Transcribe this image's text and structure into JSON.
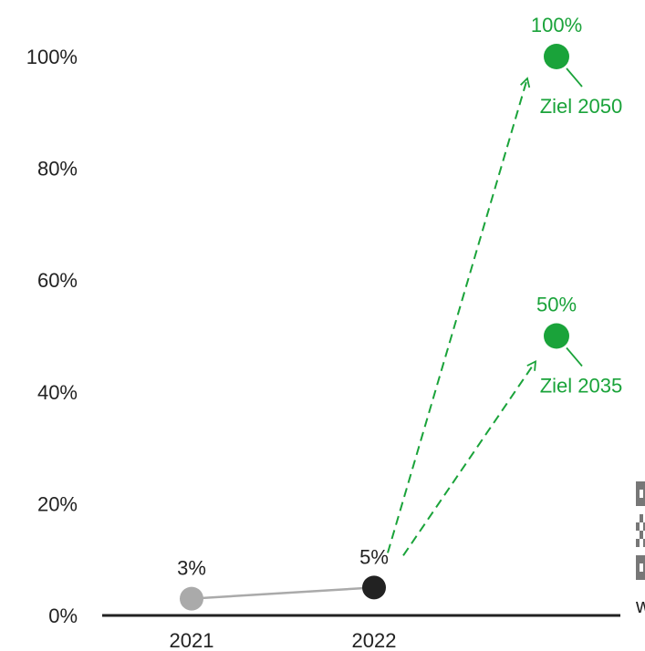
{
  "chart_data": {
    "type": "scatter",
    "title": "",
    "xlabel": "",
    "ylabel": "",
    "ylim": [
      0,
      100
    ],
    "yticks": [
      "0%",
      "20%",
      "40%",
      "60%",
      "80%",
      "100%"
    ],
    "ytick_values": [
      0,
      20,
      40,
      60,
      80,
      100
    ],
    "xticks": [
      "2021",
      "2022"
    ],
    "grid": false,
    "points": [
      {
        "x": "2021",
        "y": 3,
        "label": "3%",
        "color": "#aaaaaa"
      },
      {
        "x": "2022",
        "y": 5,
        "label": "5%",
        "color": "#222222"
      }
    ],
    "targets": [
      {
        "y": 100,
        "label": "100%",
        "annotation": "Ziel 2050",
        "color": "#1aa33a"
      },
      {
        "y": 50,
        "label": "50%",
        "annotation": "Ziel 2035",
        "color": "#1aa33a"
      }
    ]
  },
  "watermark": {
    "type": "qr-code-icon",
    "partial_text": "w"
  }
}
